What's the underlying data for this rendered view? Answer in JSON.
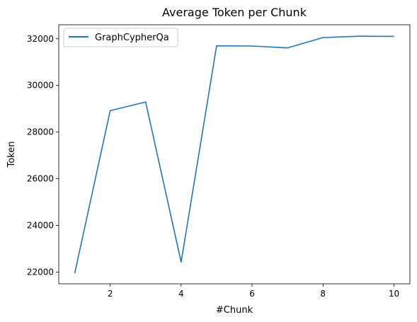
{
  "chart_data": {
    "type": "line",
    "title": "Average Token per Chunk",
    "xlabel": "#Chunk",
    "ylabel": "Token",
    "xlim": [
      0.55,
      10.45
    ],
    "ylim": [
      21500,
      32600
    ],
    "xticks": [
      2,
      4,
      6,
      8,
      10
    ],
    "yticks": [
      22000,
      24000,
      26000,
      28000,
      30000,
      32000
    ],
    "grid": false,
    "legend_position": "top-left",
    "x": [
      1,
      2,
      3,
      4,
      5,
      6,
      7,
      8,
      9,
      10
    ],
    "series": [
      {
        "name": "GraphCypherQa",
        "color": "#1f77b4",
        "values": [
          21950,
          28920,
          29290,
          22430,
          31700,
          31690,
          31610,
          32050,
          32110,
          32100
        ]
      }
    ]
  }
}
